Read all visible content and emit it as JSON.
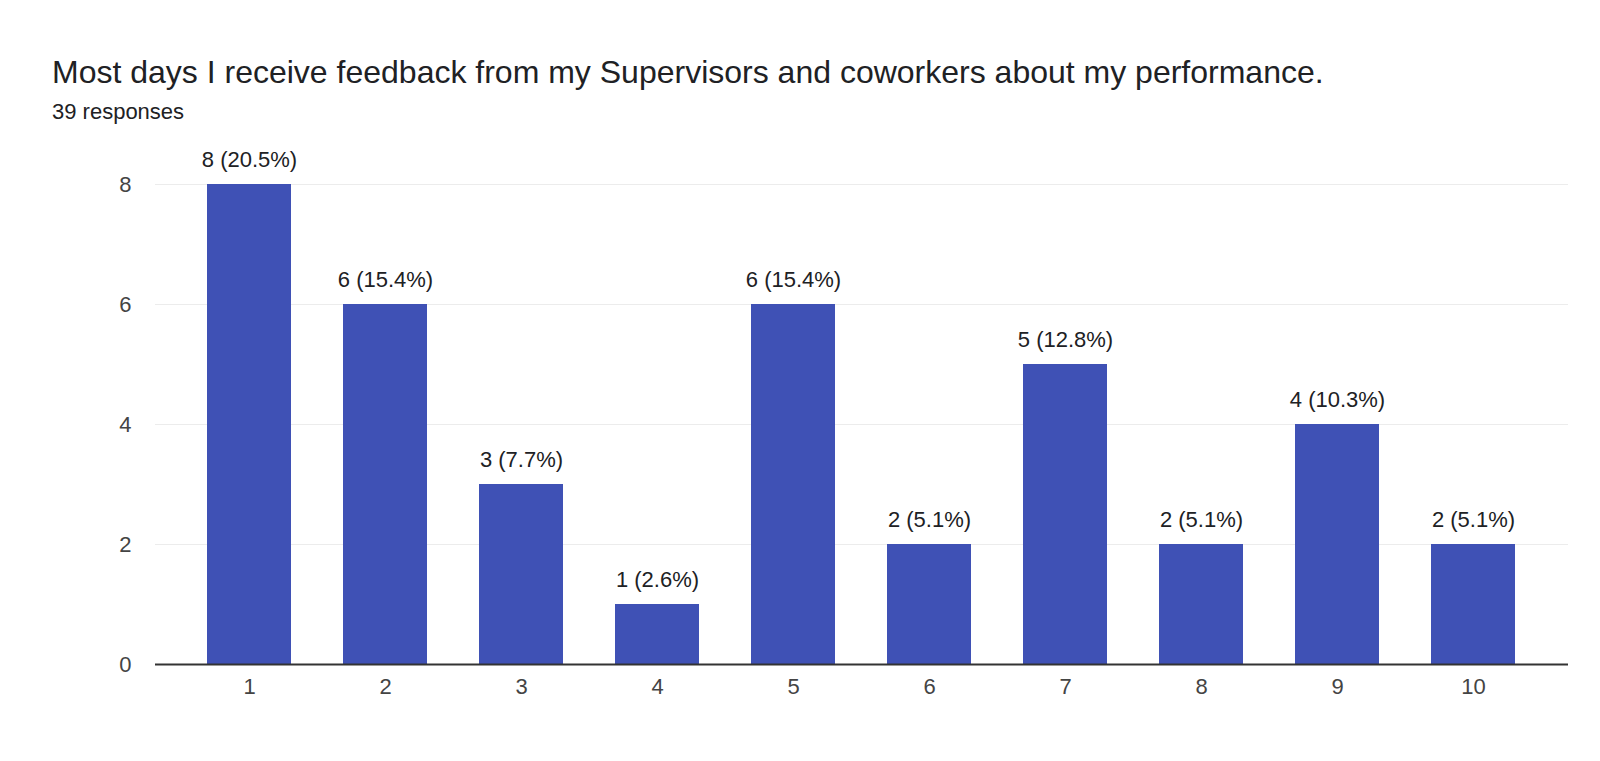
{
  "chart_data": {
    "type": "bar",
    "title": "Most days I receive feedback from my Supervisors and coworkers about my performance.",
    "subtitle": "39 responses",
    "categories": [
      "1",
      "2",
      "3",
      "4",
      "5",
      "6",
      "7",
      "8",
      "9",
      "10"
    ],
    "values": [
      8,
      6,
      3,
      1,
      6,
      2,
      5,
      2,
      4,
      2
    ],
    "value_labels": [
      "8 (20.5%)",
      "6 (15.4%)",
      "3 (7.7%)",
      "1 (2.6%)",
      "6 (15.4%)",
      "2 (5.1%)",
      "5 (12.8%)",
      "2 (5.1%)",
      "4 (10.3%)",
      "2 (5.1%)"
    ],
    "color": "#3f51b5",
    "ylim": [
      0,
      8
    ],
    "yticks": [
      0,
      2,
      4,
      6,
      8
    ],
    "grid": true,
    "data_labels": true
  }
}
